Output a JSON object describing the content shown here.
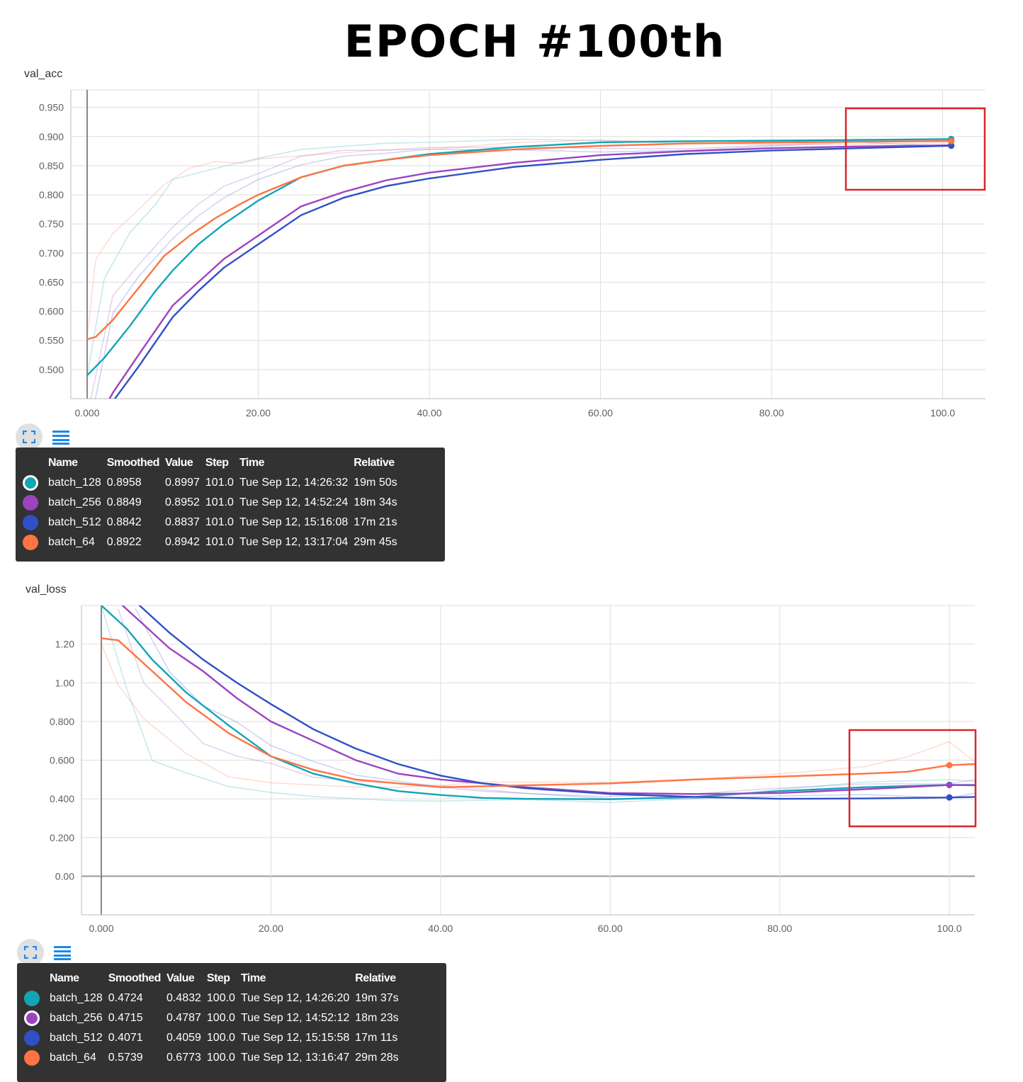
{
  "title": "EPOCH #100th",
  "colors": {
    "batch_128": "#12a5b6",
    "batch_256": "#9c44c0",
    "batch_512": "#3050c8",
    "batch_64": "#fe7443",
    "highlight": "#d8262c"
  },
  "tooltip_headers": {
    "name": "Name",
    "smoothed": "Smoothed",
    "value": "Value",
    "step": "Step",
    "time": "Time",
    "relative": "Relative"
  },
  "chart_data": [
    {
      "type": "line",
      "title": "val_acc",
      "xlim": [
        0,
        105
      ],
      "ylim": [
        0.45,
        0.98
      ],
      "x_ticks": [
        {
          "v": 0,
          "label": "0.000"
        },
        {
          "v": 20,
          "label": "20.00"
        },
        {
          "v": 40,
          "label": "40.00"
        },
        {
          "v": 60,
          "label": "60.00"
        },
        {
          "v": 80,
          "label": "80.00"
        },
        {
          "v": 100,
          "label": "100.0"
        }
      ],
      "y_ticks": [
        {
          "v": 0.5,
          "label": "0.500"
        },
        {
          "v": 0.55,
          "label": "0.550"
        },
        {
          "v": 0.6,
          "label": "0.600"
        },
        {
          "v": 0.65,
          "label": "0.650"
        },
        {
          "v": 0.7,
          "label": "0.700"
        },
        {
          "v": 0.75,
          "label": "0.750"
        },
        {
          "v": 0.8,
          "label": "0.800"
        },
        {
          "v": 0.85,
          "label": "0.850"
        },
        {
          "v": 0.9,
          "label": "0.900"
        },
        {
          "v": 0.95,
          "label": "0.950"
        }
      ],
      "series": [
        {
          "name": "batch_128",
          "x": [
            0,
            2,
            5,
            8,
            10,
            13,
            16,
            20,
            25,
            30,
            35,
            40,
            50,
            60,
            70,
            80,
            90,
            101
          ],
          "smoothed": [
            0.49,
            0.52,
            0.575,
            0.635,
            0.67,
            0.715,
            0.75,
            0.79,
            0.83,
            0.85,
            0.86,
            0.87,
            0.882,
            0.89,
            0.892,
            0.893,
            0.894,
            0.8958
          ],
          "raw": [
            0.49,
            0.66,
            0.73,
            0.78,
            0.82,
            0.84,
            0.855,
            0.86,
            0.875,
            0.88,
            0.885,
            0.886,
            0.889,
            0.892,
            0.893,
            0.894,
            0.895,
            0.8997
          ]
        },
        {
          "name": "batch_256",
          "x": [
            0,
            3,
            6,
            10,
            13,
            16,
            20,
            25,
            30,
            35,
            40,
            50,
            60,
            70,
            80,
            90,
            101
          ],
          "smoothed": [
            0.38,
            0.46,
            0.525,
            0.61,
            0.65,
            0.69,
            0.73,
            0.78,
            0.805,
            0.825,
            0.838,
            0.855,
            0.868,
            0.875,
            0.88,
            0.883,
            0.8849
          ],
          "raw": [
            0.42,
            0.62,
            0.68,
            0.74,
            0.78,
            0.82,
            0.83,
            0.86,
            0.87,
            0.87,
            0.875,
            0.88,
            0.884,
            0.885,
            0.886,
            0.887,
            0.8952
          ]
        },
        {
          "name": "batch_512",
          "x": [
            0,
            3,
            6,
            10,
            13,
            16,
            20,
            25,
            30,
            35,
            40,
            50,
            60,
            70,
            80,
            90,
            101
          ],
          "smoothed": [
            0.36,
            0.445,
            0.505,
            0.59,
            0.635,
            0.675,
            0.715,
            0.765,
            0.795,
            0.815,
            0.828,
            0.848,
            0.86,
            0.87,
            0.876,
            0.88,
            0.8842
          ],
          "raw": [
            0.38,
            0.59,
            0.66,
            0.72,
            0.76,
            0.8,
            0.82,
            0.845,
            0.86,
            0.865,
            0.872,
            0.875,
            0.878,
            0.882,
            0.884,
            0.885,
            0.8837
          ]
        },
        {
          "name": "batch_64",
          "x": [
            0,
            1,
            3,
            6,
            9,
            12,
            15,
            18,
            20,
            25,
            30,
            35,
            40,
            50,
            60,
            70,
            80,
            90,
            101
          ],
          "smoothed": [
            0.552,
            0.556,
            0.585,
            0.64,
            0.695,
            0.73,
            0.76,
            0.785,
            0.8,
            0.83,
            0.85,
            0.86,
            0.868,
            0.878,
            0.884,
            0.888,
            0.89,
            0.891,
            0.8922
          ],
          "raw": [
            0.555,
            0.69,
            0.73,
            0.78,
            0.82,
            0.84,
            0.855,
            0.86,
            0.865,
            0.87,
            0.875,
            0.88,
            0.88,
            0.885,
            0.888,
            0.89,
            0.891,
            0.892,
            0.8942
          ]
        }
      ],
      "tooltip": [
        {
          "name": "batch_128",
          "smoothed": "0.8958",
          "value": "0.8997",
          "step": "101.0",
          "time": "Tue Sep 12, 14:26:32",
          "relative": "19m 50s",
          "selected": true
        },
        {
          "name": "batch_256",
          "smoothed": "0.8849",
          "value": "0.8952",
          "step": "101.0",
          "time": "Tue Sep 12, 14:52:24",
          "relative": "18m 34s",
          "selected": false
        },
        {
          "name": "batch_512",
          "smoothed": "0.8842",
          "value": "0.8837",
          "step": "101.0",
          "time": "Tue Sep 12, 15:16:08",
          "relative": "17m 21s",
          "selected": false
        },
        {
          "name": "batch_64",
          "smoothed": "0.8922",
          "value": "0.8942",
          "step": "101.0",
          "time": "Tue Sep 12, 13:17:04",
          "relative": "29m 45s",
          "selected": false
        }
      ]
    },
    {
      "type": "line",
      "title": "val_loss",
      "xlim": [
        -2,
        103
      ],
      "ylim": [
        -0.2,
        1.4
      ],
      "x_ticks": [
        {
          "v": 0,
          "label": "0.000"
        },
        {
          "v": 20,
          "label": "20.00"
        },
        {
          "v": 40,
          "label": "40.00"
        },
        {
          "v": 60,
          "label": "60.00"
        },
        {
          "v": 80,
          "label": "80.00"
        },
        {
          "v": 100,
          "label": "100.0"
        }
      ],
      "y_ticks": [
        {
          "v": 0,
          "label": "0.00"
        },
        {
          "v": 0.2,
          "label": "0.200"
        },
        {
          "v": 0.4,
          "label": "0.400"
        },
        {
          "v": 0.6,
          "label": "0.600"
        },
        {
          "v": 0.8,
          "label": "0.800"
        },
        {
          "v": 1.0,
          "label": "1.00"
        },
        {
          "v": 1.2,
          "label": "1.20"
        }
      ],
      "series": [
        {
          "name": "batch_128",
          "x": [
            0,
            3,
            6,
            10,
            15,
            20,
            25,
            30,
            35,
            40,
            45,
            50,
            60,
            70,
            80,
            90,
            100,
            103
          ],
          "smoothed": [
            1.4,
            1.28,
            1.12,
            0.95,
            0.78,
            0.62,
            0.53,
            0.48,
            0.44,
            0.42,
            0.405,
            0.4,
            0.398,
            0.41,
            0.44,
            0.46,
            0.4724,
            0.472
          ],
          "raw": [
            1.4,
            0.95,
            0.6,
            0.52,
            0.45,
            0.42,
            0.4,
            0.39,
            0.38,
            0.38,
            0.385,
            0.39,
            0.395,
            0.42,
            0.45,
            0.47,
            0.4832,
            0.48
          ]
        },
        {
          "name": "batch_256",
          "x": [
            2,
            5,
            8,
            12,
            16,
            20,
            25,
            30,
            35,
            40,
            50,
            60,
            70,
            80,
            90,
            100,
            103
          ],
          "smoothed": [
            1.42,
            1.3,
            1.18,
            1.06,
            0.92,
            0.8,
            0.7,
            0.6,
            0.53,
            0.5,
            0.46,
            0.43,
            0.425,
            0.43,
            0.45,
            0.4715,
            0.47
          ],
          "raw": [
            1.4,
            1.0,
            0.85,
            0.7,
            0.62,
            0.57,
            0.5,
            0.48,
            0.47,
            0.46,
            0.44,
            0.43,
            0.43,
            0.44,
            0.46,
            0.4787,
            0.48
          ]
        },
        {
          "name": "batch_512",
          "x": [
            4,
            8,
            12,
            16,
            20,
            25,
            30,
            35,
            40,
            45,
            50,
            60,
            70,
            80,
            90,
            100,
            103
          ],
          "smoothed": [
            1.42,
            1.26,
            1.12,
            1.0,
            0.89,
            0.76,
            0.66,
            0.58,
            0.52,
            0.48,
            0.455,
            0.425,
            0.41,
            0.4,
            0.402,
            0.4071,
            0.41
          ],
          "raw": [
            1.38,
            1.05,
            0.9,
            0.78,
            0.68,
            0.6,
            0.53,
            0.5,
            0.47,
            0.45,
            0.44,
            0.42,
            0.405,
            0.4,
            0.405,
            0.4059,
            0.41
          ]
        },
        {
          "name": "batch_64",
          "x": [
            0,
            2,
            5,
            10,
            15,
            20,
            25,
            30,
            35,
            40,
            45,
            50,
            60,
            70,
            80,
            90,
            95,
            100,
            103
          ],
          "smoothed": [
            1.23,
            1.22,
            1.1,
            0.9,
            0.74,
            0.62,
            0.55,
            0.5,
            0.48,
            0.46,
            0.465,
            0.47,
            0.48,
            0.5,
            0.515,
            0.53,
            0.54,
            0.5739,
            0.58
          ],
          "raw": [
            1.2,
            1.0,
            0.8,
            0.62,
            0.5,
            0.47,
            0.46,
            0.45,
            0.45,
            0.46,
            0.48,
            0.48,
            0.5,
            0.52,
            0.53,
            0.55,
            0.6,
            0.6773,
            0.6
          ]
        }
      ],
      "tooltip": [
        {
          "name": "batch_128",
          "smoothed": "0.4724",
          "value": "0.4832",
          "step": "100.0",
          "time": "Tue Sep 12, 14:26:20",
          "relative": "19m 37s",
          "selected": false
        },
        {
          "name": "batch_256",
          "smoothed": "0.4715",
          "value": "0.4787",
          "step": "100.0",
          "time": "Tue Sep 12, 14:52:12",
          "relative": "18m 23s",
          "selected": true
        },
        {
          "name": "batch_512",
          "smoothed": "0.4071",
          "value": "0.4059",
          "step": "100.0",
          "time": "Tue Sep 12, 15:15:58",
          "relative": "17m 11s",
          "selected": false
        },
        {
          "name": "batch_64",
          "smoothed": "0.5739",
          "value": "0.6773",
          "step": "100.0",
          "time": "Tue Sep 12, 13:16:47",
          "relative": "29m 28s",
          "selected": false
        }
      ]
    }
  ]
}
